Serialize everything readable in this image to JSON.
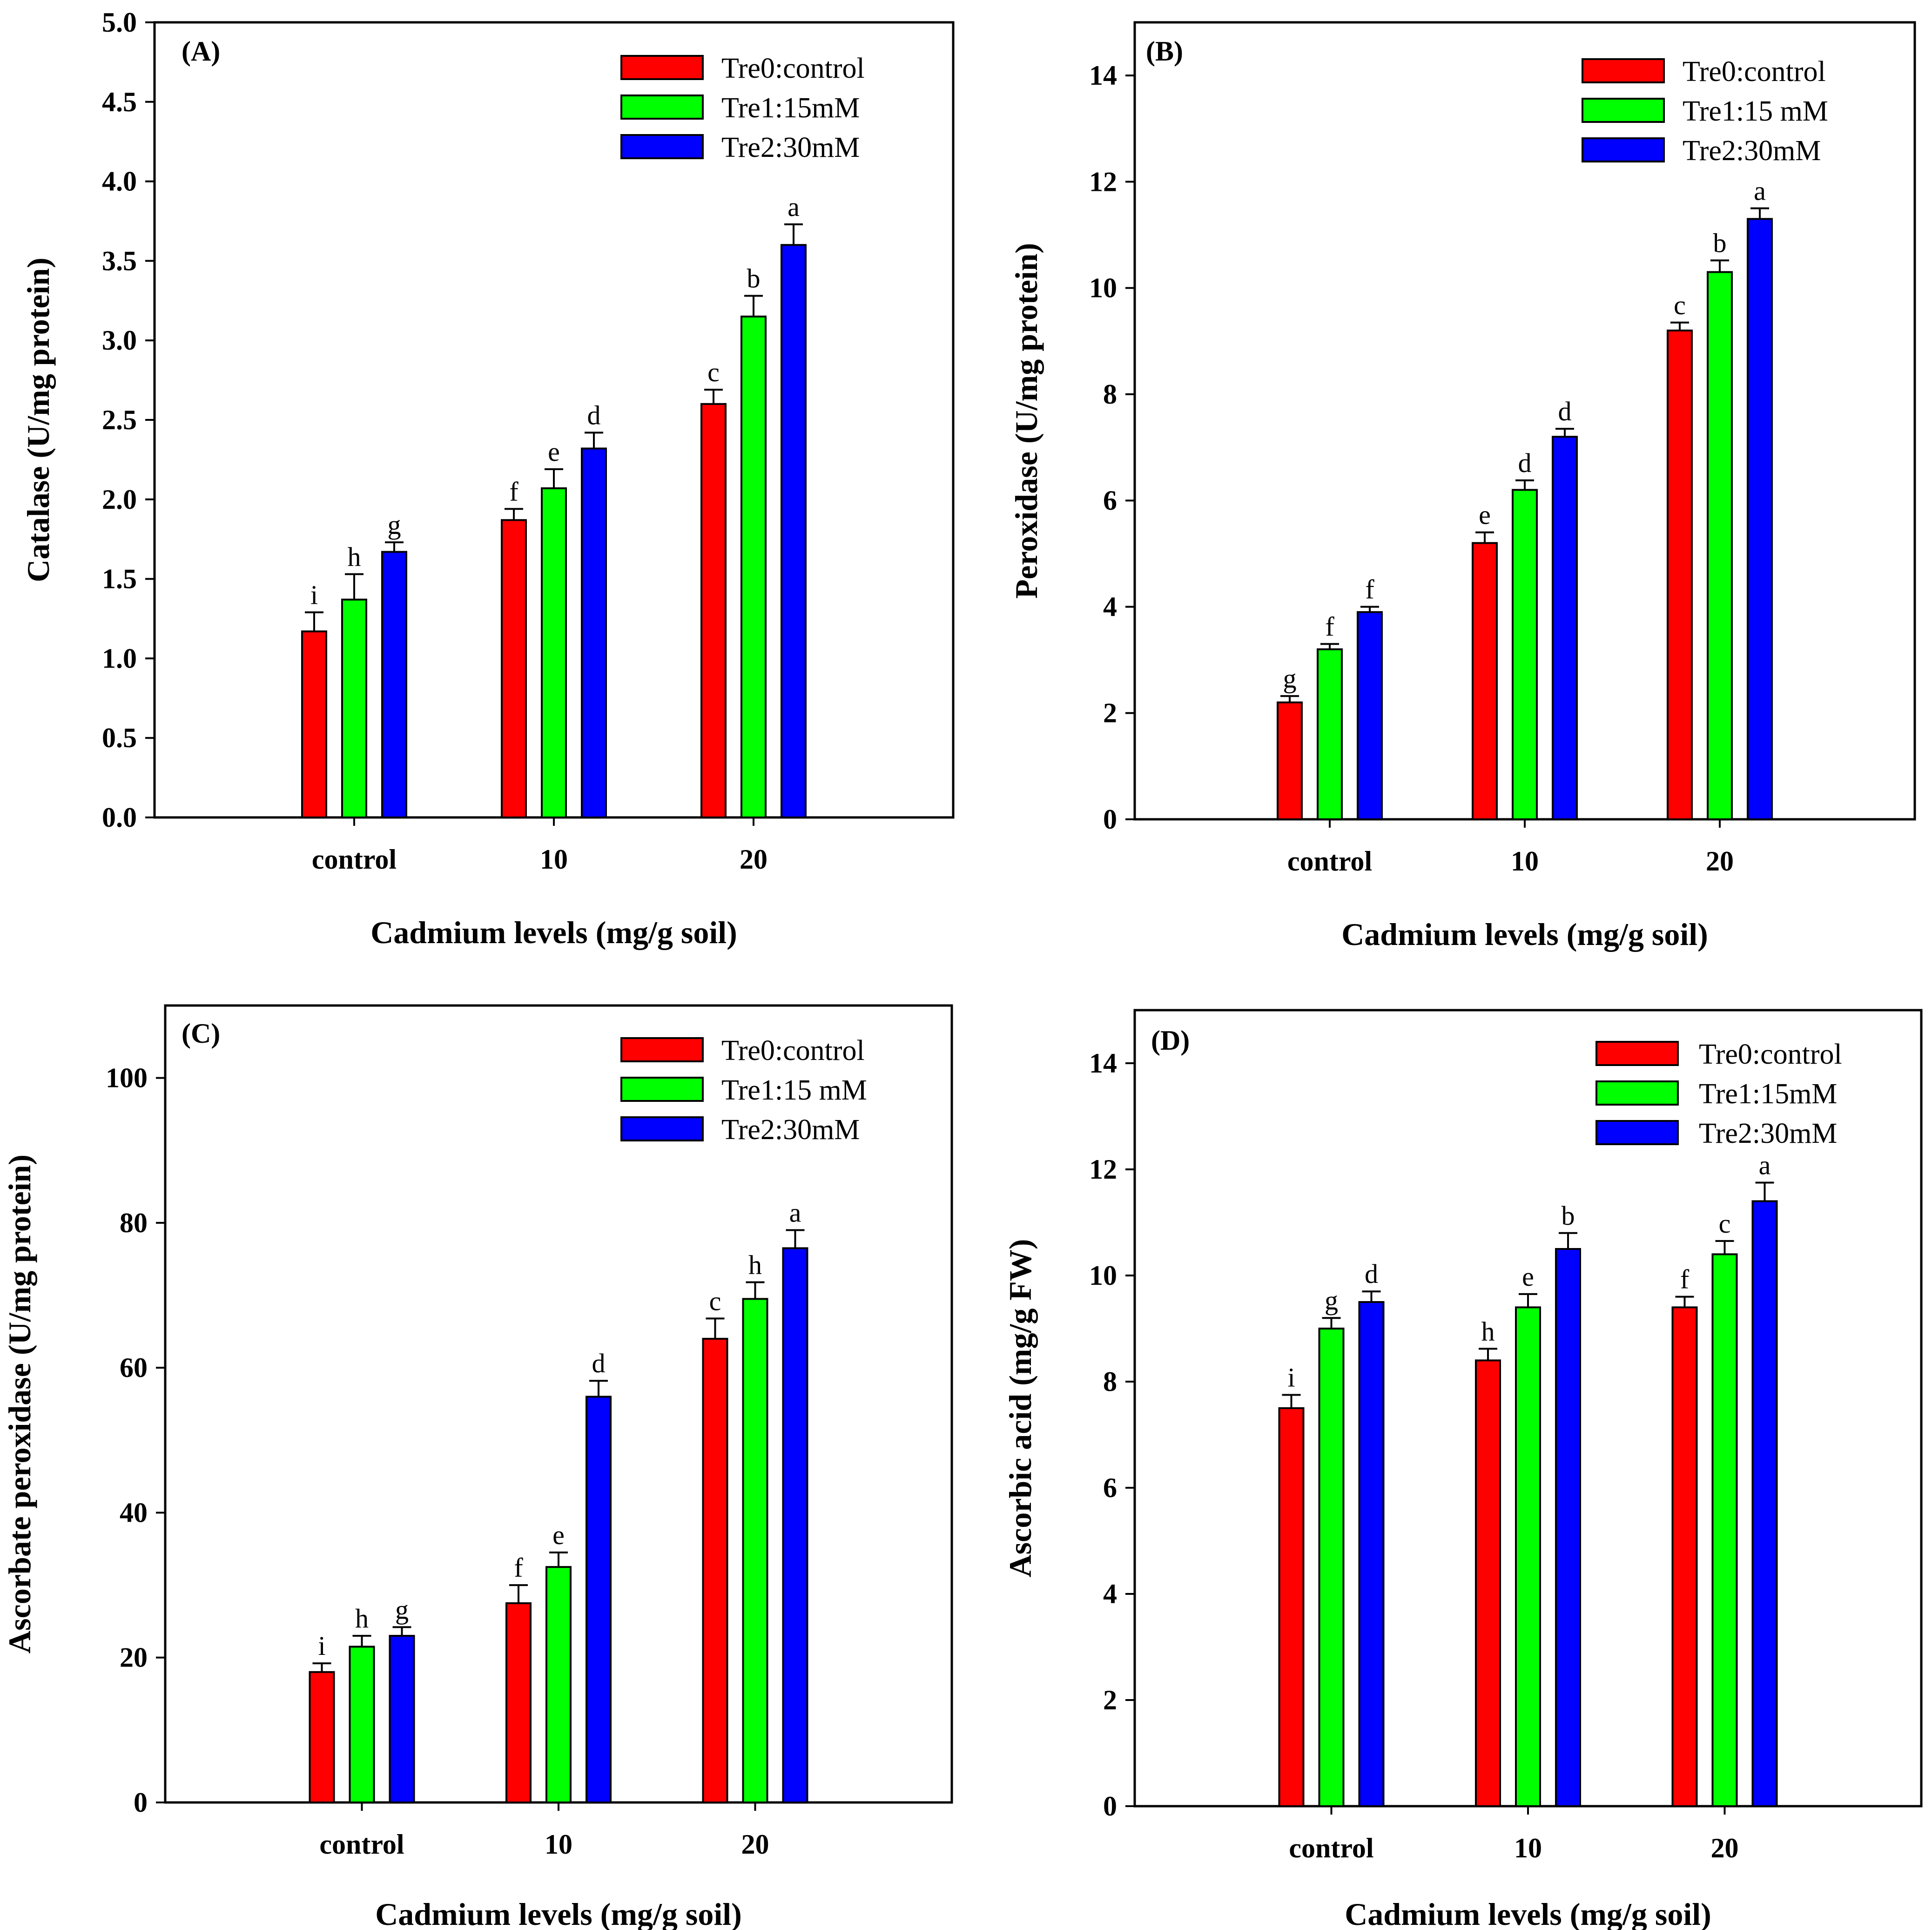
{
  "chart_data": [
    {
      "type": "bar",
      "panel_label": "(A)",
      "categories": [
        "control",
        "10",
        "20"
      ],
      "xlabel": "Cadmium levels (mg/g soil)",
      "ylabel": "Catalase (U/mg protein)",
      "ylim": [
        0,
        5
      ],
      "yticks": [
        0,
        0.5,
        1,
        1.5,
        2,
        2.5,
        3,
        3.5,
        4,
        4.5,
        5
      ],
      "ytick_labels": [
        "0.0",
        "0.5",
        "1.0",
        "1.5",
        "2.0",
        "2.5",
        "3.0",
        "3.5",
        "4.0",
        "4.5",
        "5.0"
      ],
      "legend_position": "top-right",
      "series": [
        {
          "name": "Tre0:control",
          "color": "#ff0000",
          "values": [
            1.17,
            1.87,
            2.6
          ],
          "errors": [
            0.12,
            0.07,
            0.09
          ],
          "letters": [
            "i",
            "f",
            "c"
          ]
        },
        {
          "name": "Tre1:15mM",
          "color": "#00ff00",
          "values": [
            1.37,
            2.07,
            3.15
          ],
          "errors": [
            0.16,
            0.12,
            0.13
          ],
          "letters": [
            "h",
            "e",
            "b"
          ]
        },
        {
          "name": "Tre2:30mM",
          "color": "#0000ff",
          "values": [
            1.67,
            2.32,
            3.6
          ],
          "errors": [
            0.06,
            0.1,
            0.13
          ],
          "letters": [
            "g",
            "d",
            "a"
          ]
        }
      ]
    },
    {
      "type": "bar",
      "panel_label": "(B)",
      "categories": [
        "control",
        "10",
        "20"
      ],
      "xlabel": "Cadmium levels (mg/g soil)",
      "ylabel": "Peroxidase (U/mg protein)",
      "ylim": [
        0,
        15
      ],
      "yticks": [
        0,
        2,
        4,
        6,
        8,
        10,
        12,
        14
      ],
      "ytick_labels": [
        "0",
        "2",
        "4",
        "6",
        "8",
        "10",
        "12",
        "14"
      ],
      "legend_position": "top-right",
      "series": [
        {
          "name": "Tre0:control",
          "color": "#ff0000",
          "values": [
            2.2,
            5.2,
            9.2
          ],
          "errors": [
            0.12,
            0.2,
            0.15
          ],
          "letters": [
            "g",
            "e",
            "c"
          ]
        },
        {
          "name": "Tre1:15 mM",
          "color": "#00ff00",
          "values": [
            3.2,
            6.2,
            10.3
          ],
          "errors": [
            0.1,
            0.18,
            0.22
          ],
          "letters": [
            "f",
            "d",
            "b"
          ]
        },
        {
          "name": "Tre2:30mM",
          "color": "#0000ff",
          "values": [
            3.9,
            7.2,
            11.3
          ],
          "errors": [
            0.1,
            0.15,
            0.2
          ],
          "letters": [
            "f",
            "d",
            "a"
          ]
        }
      ]
    },
    {
      "type": "bar",
      "panel_label": "(C)",
      "categories": [
        "control",
        "10",
        "20"
      ],
      "xlabel": "Cadmium levels (mg/g soil)",
      "ylabel": "Ascorbate peroxidase (U/mg protein)",
      "ylim": [
        0,
        110
      ],
      "yticks": [
        0,
        20,
        40,
        60,
        80,
        100
      ],
      "ytick_labels": [
        "0",
        "20",
        "40",
        "60",
        "80",
        "100"
      ],
      "legend_position": "top-right",
      "series": [
        {
          "name": "Tre0:control",
          "color": "#ff0000",
          "values": [
            18,
            27.5,
            64
          ],
          "errors": [
            1.2,
            2.5,
            2.8
          ],
          "letters": [
            "i",
            "f",
            "c"
          ]
        },
        {
          "name": "Tre1:15 mM",
          "color": "#00ff00",
          "values": [
            21.5,
            32.5,
            69.5
          ],
          "errors": [
            1.5,
            2.0,
            2.3
          ],
          "letters": [
            "h",
            "e",
            "h"
          ]
        },
        {
          "name": "Tre2:30mM",
          "color": "#0000ff",
          "values": [
            23,
            56,
            76.5
          ],
          "errors": [
            1.2,
            2.2,
            2.5
          ],
          "letters": [
            "g",
            "d",
            "a"
          ]
        }
      ]
    },
    {
      "type": "bar",
      "panel_label": "(D)",
      "categories": [
        "control",
        "10",
        "20"
      ],
      "xlabel": "Cadmium levels (mg/g soil)",
      "ylabel": "Ascorbic acid (mg/g FW)",
      "ylim": [
        0,
        15
      ],
      "yticks": [
        0,
        2,
        4,
        6,
        8,
        10,
        12,
        14
      ],
      "ytick_labels": [
        "0",
        "2",
        "4",
        "6",
        "8",
        "10",
        "12",
        "14"
      ],
      "legend_position": "top-right",
      "series": [
        {
          "name": "Tre0:control",
          "color": "#ff0000",
          "values": [
            7.5,
            8.4,
            9.4
          ],
          "errors": [
            0.25,
            0.22,
            0.2
          ],
          "letters": [
            "i",
            "h",
            "f"
          ]
        },
        {
          "name": "Tre1:15mM",
          "color": "#00ff00",
          "values": [
            9.0,
            9.4,
            10.4
          ],
          "errors": [
            0.2,
            0.25,
            0.25
          ],
          "letters": [
            "g",
            "e",
            "c"
          ]
        },
        {
          "name": "Tre2:30mM",
          "color": "#0000ff",
          "values": [
            9.5,
            10.5,
            11.4
          ],
          "errors": [
            0.2,
            0.3,
            0.35
          ],
          "letters": [
            "d",
            "b",
            "a"
          ]
        }
      ]
    }
  ]
}
